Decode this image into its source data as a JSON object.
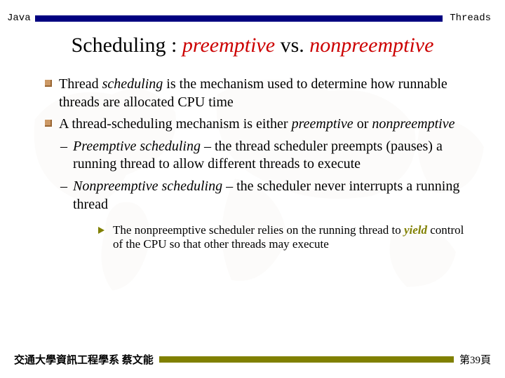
{
  "header": {
    "left": "Java",
    "right": "Threads",
    "bar_color": "#000080"
  },
  "title": {
    "prefix": "Scheduling : ",
    "word1": "preemptive",
    "mid": " vs. ",
    "word2": "nonpreemptive",
    "accent_color": "#cc0000",
    "fontsize": 30
  },
  "bullets": {
    "items": [
      {
        "segments": [
          {
            "text": "Thread ",
            "style": "plain"
          },
          {
            "text": "scheduling",
            "style": "italic"
          },
          {
            "text": " is the mechanism used to determine how runnable threads are allocated CPU time",
            "style": "plain"
          }
        ]
      },
      {
        "segments": [
          {
            "text": "A thread-scheduling mechanism is either ",
            "style": "plain"
          },
          {
            "text": "preemptive",
            "style": "italic"
          },
          {
            "text": " or ",
            "style": "plain"
          },
          {
            "text": "nonpreemptive",
            "style": "italic"
          }
        ],
        "sub": [
          {
            "segments": [
              {
                "text": "Preemptive scheduling",
                "style": "italic"
              },
              {
                "text": " – the thread scheduler preempts (pauses) a running thread to allow different threads to execute",
                "style": "plain"
              }
            ]
          },
          {
            "segments": [
              {
                "text": "Nonpreemptive scheduling",
                "style": "italic"
              },
              {
                "text": " – the scheduler never interrupts a running thread",
                "style": "plain"
              }
            ]
          }
        ]
      }
    ],
    "subsub": {
      "segments": [
        {
          "text": "The nonpreemptive scheduler relies on the running thread to ",
          "style": "plain"
        },
        {
          "text": "yield",
          "style": "olive-bi"
        },
        {
          "text": " control of the CPU so that other threads may execute",
          "style": "plain"
        }
      ],
      "triangle_color": "#808000"
    },
    "square_color": "#cc9966",
    "fontsize": 20
  },
  "footer": {
    "left": "交通大學資訊工程學系 蔡文能",
    "right": "第39頁",
    "bar_color": "#808000"
  },
  "background": {
    "map_color": "#d9d2bf",
    "map_opacity": 0.07
  }
}
